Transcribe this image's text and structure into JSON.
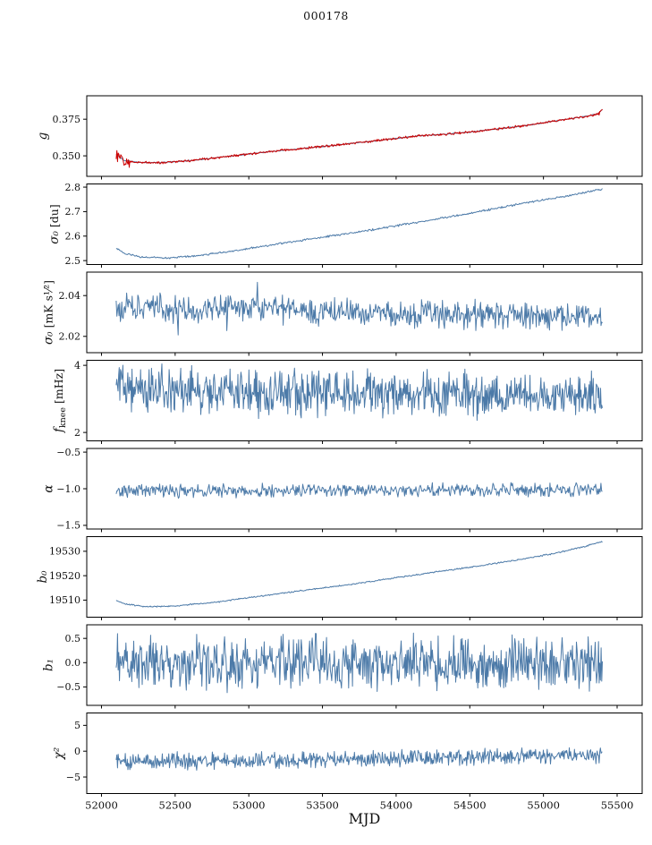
{
  "chart_data": {
    "type": "line",
    "title": "000178",
    "xlabel": "MJD",
    "grid": false,
    "legend": null,
    "x_range": [
      51900,
      55670
    ],
    "x_ticks": [
      {
        "v": 52000,
        "label": "52000"
      },
      {
        "v": 52500,
        "label": "52500"
      },
      {
        "v": 53000,
        "label": "53000"
      },
      {
        "v": 53500,
        "label": "53500"
      },
      {
        "v": 54000,
        "label": "54000"
      },
      {
        "v": 54500,
        "label": "54500"
      },
      {
        "v": 55000,
        "label": "55000"
      },
      {
        "v": 55500,
        "label": "55500"
      }
    ],
    "panels": [
      {
        "name": "g",
        "ylabel": {
          "symbol": "g",
          "unit": ""
        },
        "ylim": [
          0.336,
          0.391
        ],
        "yticks": [
          {
            "v": 0.35,
            "label": "0.350"
          },
          {
            "v": 0.375,
            "label": "0.375"
          }
        ],
        "series": [
          {
            "name": "gain-fit",
            "color": "#4c7aa8",
            "width": 1,
            "n": 500,
            "seed": 11,
            "noise": 0.0002,
            "trend": [
              [
                52100,
                0.3512
              ],
              [
                52150,
                0.347
              ],
              [
                52250,
                0.3455
              ],
              [
                52400,
                0.3454
              ],
              [
                52600,
                0.3467
              ],
              [
                52900,
                0.3501
              ],
              [
                53200,
                0.3535
              ],
              [
                53500,
                0.3564
              ],
              [
                53800,
                0.3596
              ],
              [
                54000,
                0.3619
              ],
              [
                54150,
                0.3637
              ],
              [
                54300,
                0.3645
              ],
              [
                54500,
                0.3662
              ],
              [
                54700,
                0.3686
              ],
              [
                54900,
                0.3709
              ],
              [
                55100,
                0.3741
              ],
              [
                55250,
                0.3764
              ],
              [
                55370,
                0.3786
              ],
              [
                55400,
                0.3818
              ]
            ]
          },
          {
            "name": "gain-data",
            "color": "#cc0000",
            "width": 1,
            "n": 750,
            "seed": 12,
            "noise": 0.0005,
            "noise_regions": [
              [
                52100,
                52190,
                0.0028
              ]
            ],
            "spikes": [
              [
                55378,
                0.3778
              ]
            ],
            "trend": [
              [
                52100,
                0.3512
              ],
              [
                52150,
                0.347
              ],
              [
                52250,
                0.3455
              ],
              [
                52400,
                0.3454
              ],
              [
                52600,
                0.3467
              ],
              [
                52900,
                0.3501
              ],
              [
                53200,
                0.3535
              ],
              [
                53500,
                0.3564
              ],
              [
                53800,
                0.3596
              ],
              [
                54000,
                0.3619
              ],
              [
                54150,
                0.3637
              ],
              [
                54300,
                0.3645
              ],
              [
                54500,
                0.3662
              ],
              [
                54700,
                0.3686
              ],
              [
                54900,
                0.3709
              ],
              [
                55100,
                0.3741
              ],
              [
                55250,
                0.3764
              ],
              [
                55370,
                0.3786
              ],
              [
                55400,
                0.3818
              ]
            ]
          }
        ]
      },
      {
        "name": "sigma0-du",
        "ylabel": {
          "symbol": "σ₀",
          "unit": " [du]"
        },
        "ylim": [
          2.484,
          2.813
        ],
        "yticks": [
          {
            "v": 2.5,
            "label": "2.5"
          },
          {
            "v": 2.6,
            "label": "2.6"
          },
          {
            "v": 2.7,
            "label": "2.7"
          },
          {
            "v": 2.8,
            "label": "2.8"
          }
        ],
        "series": [
          {
            "name": "sigma0-du",
            "color": "#4c7aa8",
            "width": 1,
            "n": 600,
            "seed": 23,
            "noise": 0.0025,
            "trend": [
              [
                52100,
                2.552
              ],
              [
                52160,
                2.527
              ],
              [
                52280,
                2.514
              ],
              [
                52450,
                2.511
              ],
              [
                52650,
                2.52
              ],
              [
                52900,
                2.54
              ],
              [
                53200,
                2.568
              ],
              [
                53500,
                2.596
              ],
              [
                53800,
                2.622
              ],
              [
                54100,
                2.652
              ],
              [
                54400,
                2.682
              ],
              [
                54700,
                2.716
              ],
              [
                55000,
                2.748
              ],
              [
                55200,
                2.768
              ],
              [
                55400,
                2.792
              ]
            ]
          }
        ]
      },
      {
        "name": "sigma0-mk",
        "ylabel": {
          "symbol": "σ₀",
          "unit": " [mK s¹⁄²]"
        },
        "ylim": [
          2.012,
          2.0515
        ],
        "yticks": [
          {
            "v": 2.02,
            "label": "2.02"
          },
          {
            "v": 2.04,
            "label": "2.04"
          }
        ],
        "series": [
          {
            "name": "sigma0-mk",
            "color": "#4c7aa8",
            "width": 1,
            "n": 700,
            "seed": 34,
            "noise": 0.0042,
            "spikes": [
              [
                52520,
                2.0207
              ],
              [
                52850,
                2.0228
              ],
              [
                53060,
                2.0465
              ],
              [
                54880,
                2.024
              ]
            ],
            "trend": [
              [
                52100,
                2.034
              ],
              [
                53000,
                2.0335
              ],
              [
                54000,
                2.0315
              ],
              [
                54700,
                2.0305
              ],
              [
                55400,
                2.0295
              ]
            ]
          }
        ]
      },
      {
        "name": "fknee",
        "ylabel": {
          "symbol": "f",
          "sub": "knee",
          "unit": " [mHz]"
        },
        "ylim": [
          1.75,
          4.15
        ],
        "yticks": [
          {
            "v": 2,
            "label": "2"
          },
          {
            "v": 4,
            "label": "4"
          }
        ],
        "series": [
          {
            "name": "fknee",
            "color": "#4c7aa8",
            "width": 1,
            "n": 800,
            "seed": 45,
            "noise": 0.42,
            "noise_regions": [
              [
                52100,
                52400,
                0.45
              ]
            ],
            "trend": [
              [
                52100,
                3.45
              ],
              [
                52350,
                3.32
              ],
              [
                52700,
                3.22
              ],
              [
                53500,
                3.18
              ],
              [
                54500,
                3.12
              ],
              [
                55400,
                3.08
              ]
            ]
          }
        ]
      },
      {
        "name": "alpha",
        "ylabel": {
          "symbol": "α",
          "unit": ""
        },
        "ylim": [
          -1.55,
          -0.45
        ],
        "yticks": [
          {
            "v": -0.5,
            "label": "−0.5"
          },
          {
            "v": -1.0,
            "label": "−1.0"
          },
          {
            "v": -1.5,
            "label": "−1.5"
          }
        ],
        "series": [
          {
            "name": "alpha",
            "color": "#4c7aa8",
            "width": 1,
            "n": 650,
            "seed": 56,
            "noise": 0.055,
            "trend": [
              [
                52100,
                -1.03
              ],
              [
                53500,
                -1.02
              ],
              [
                55400,
                -1.01
              ]
            ]
          }
        ]
      },
      {
        "name": "b0",
        "ylabel": {
          "symbol": "b₀",
          "unit": ""
        },
        "ylim": [
          19503,
          19536
        ],
        "yticks": [
          {
            "v": 19510,
            "label": "19510"
          },
          {
            "v": 19520,
            "label": "19520"
          },
          {
            "v": 19530,
            "label": "19530"
          }
        ],
        "series": [
          {
            "name": "b0",
            "color": "#4c7aa8",
            "width": 1,
            "n": 600,
            "seed": 67,
            "noise": 0.18,
            "trend": [
              [
                52100,
                19509.8
              ],
              [
                52170,
                19508.3
              ],
              [
                52300,
                19507.3
              ],
              [
                52500,
                19507.6
              ],
              [
                52800,
                19509.3
              ],
              [
                53100,
                19511.8
              ],
              [
                53400,
                19514.2
              ],
              [
                53700,
                19516.5
              ],
              [
                54000,
                19519.2
              ],
              [
                54300,
                19521.8
              ],
              [
                54600,
                19524.3
              ],
              [
                54900,
                19527.2
              ],
              [
                55100,
                19529.5
              ],
              [
                55250,
                19531.5
              ],
              [
                55400,
                19534.0
              ]
            ]
          }
        ]
      },
      {
        "name": "b1",
        "ylabel": {
          "symbol": "b₁",
          "unit": ""
        },
        "ylim": [
          -0.88,
          0.78
        ],
        "yticks": [
          {
            "v": 0.5,
            "label": "0.5"
          },
          {
            "v": 0.0,
            "label": "0.0"
          },
          {
            "v": -0.5,
            "label": "−0.5"
          }
        ],
        "series": [
          {
            "name": "b1",
            "color": "#4c7aa8",
            "width": 1,
            "n": 750,
            "seed": 78,
            "noise": 0.33,
            "trend": [
              [
                52100,
                0.0
              ],
              [
                55400,
                0.0
              ]
            ]
          }
        ]
      },
      {
        "name": "chi2",
        "ylabel": {
          "symbol": "χ²",
          "unit": ""
        },
        "ylim": [
          -8.2,
          7.4
        ],
        "yticks": [
          {
            "v": 5,
            "label": "5"
          },
          {
            "v": 0,
            "label": "0"
          },
          {
            "v": -5,
            "label": "−5"
          }
        ],
        "series": [
          {
            "name": "chi2",
            "color": "#4c7aa8",
            "width": 1,
            "n": 750,
            "seed": 89,
            "noise": 1.0,
            "trend": [
              [
                52100,
                -1.9
              ],
              [
                52800,
                -1.85
              ],
              [
                53500,
                -1.6
              ],
              [
                54200,
                -1.25
              ],
              [
                54800,
                -1.0
              ],
              [
                55400,
                -0.75
              ]
            ]
          }
        ]
      }
    ]
  }
}
